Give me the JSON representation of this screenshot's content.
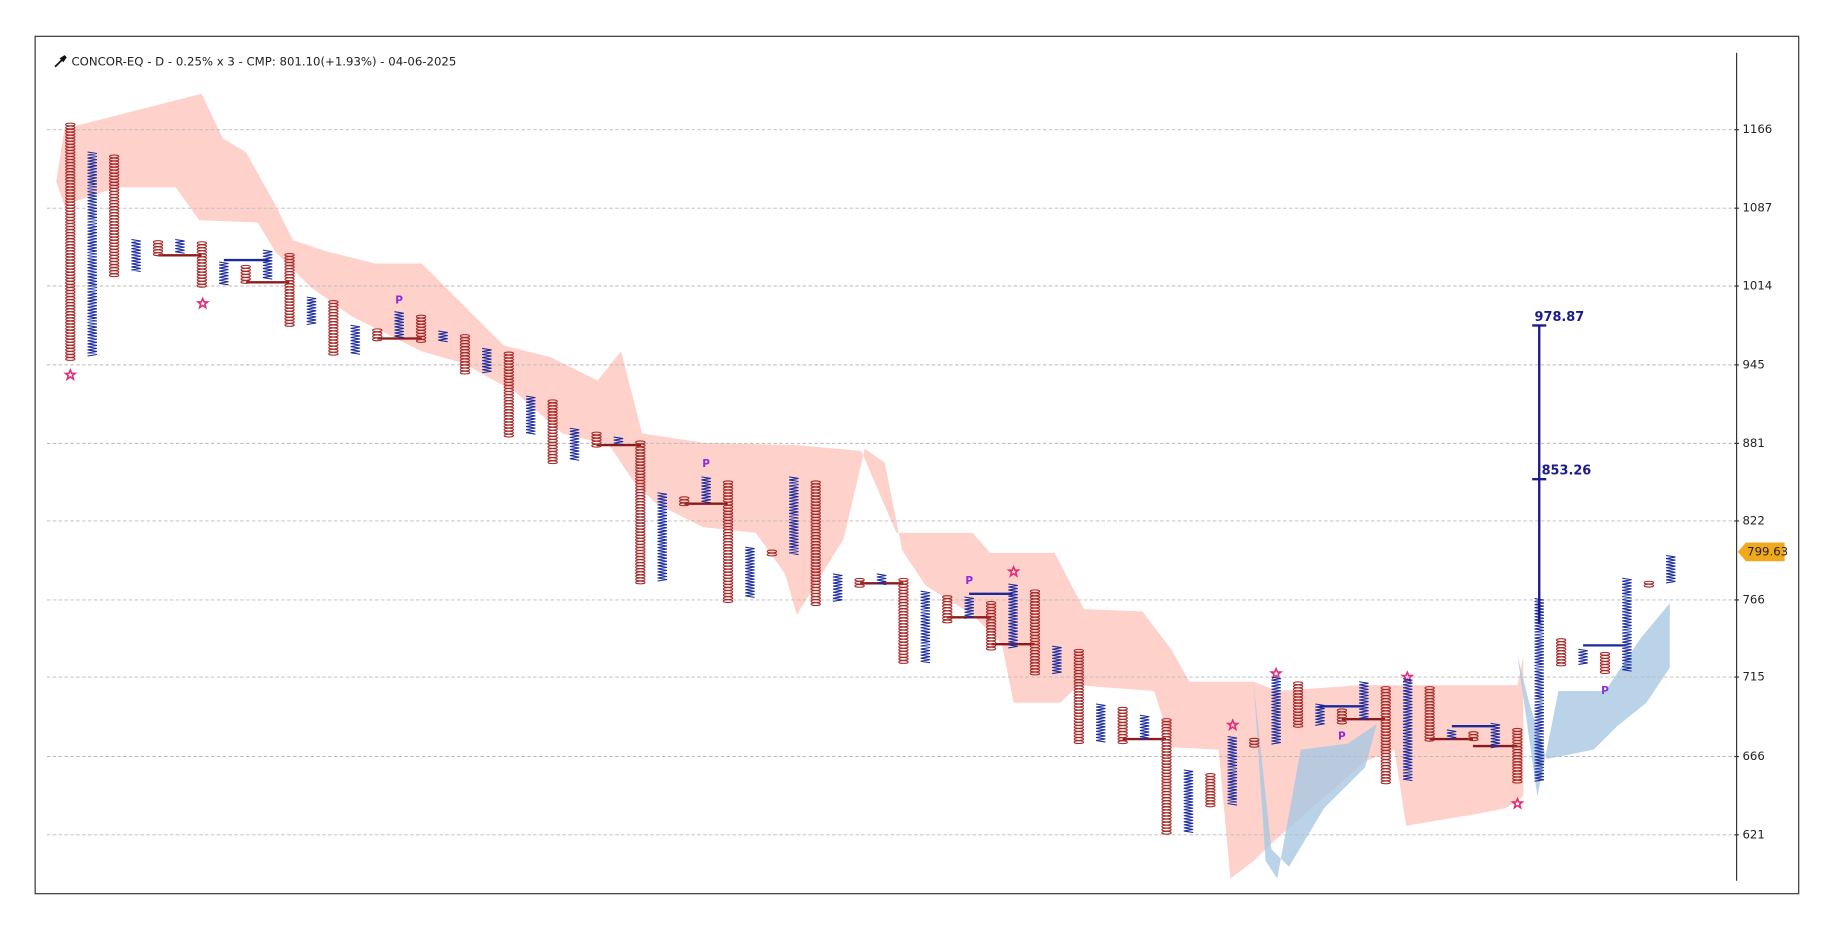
{
  "chart_data": {
    "type": "pnf",
    "title": "CONCOR-EQ - D - 0.25% x 3 - CMP: 801.10(+1.93%) - 04-06-2025",
    "log_scale": true,
    "grid": true,
    "ylim": [
      596,
      1249
    ],
    "yticks": [
      621,
      666,
      715,
      766,
      822,
      881,
      945,
      1014,
      1087,
      1166
    ],
    "x_color": "#1a2a9e",
    "o_color": "#a52a2a",
    "columns": [
      {
        "type": "O",
        "high": 1173,
        "low": 949
      },
      {
        "type": "X",
        "high": 1143,
        "low": 952
      },
      {
        "type": "O",
        "high": 1140,
        "low": 1023
      },
      {
        "type": "X",
        "high": 1057,
        "low": 1026
      },
      {
        "type": "O",
        "high": 1056,
        "low": 1041
      },
      {
        "type": "X",
        "high": 1057,
        "low": 1043
      },
      {
        "type": "O",
        "high": 1055,
        "low": 1012
      },
      {
        "type": "X",
        "high": 1036,
        "low": 1015
      },
      {
        "type": "O",
        "high": 1033,
        "low": 1016
      },
      {
        "type": "X",
        "high": 1047,
        "low": 1019
      },
      {
        "type": "O",
        "high": 1044,
        "low": 978
      },
      {
        "type": "X",
        "high": 1004,
        "low": 979
      },
      {
        "type": "O",
        "high": 1001,
        "low": 952
      },
      {
        "type": "X",
        "high": 979,
        "low": 954
      },
      {
        "type": "O",
        "high": 976,
        "low": 966
      },
      {
        "type": "X",
        "high": 991,
        "low": 968
      },
      {
        "type": "O",
        "high": 988,
        "low": 963
      },
      {
        "type": "X",
        "high": 974,
        "low": 964
      },
      {
        "type": "O",
        "high": 971,
        "low": 936
      },
      {
        "type": "X",
        "high": 959,
        "low": 938
      },
      {
        "type": "O",
        "high": 956,
        "low": 886
      },
      {
        "type": "X",
        "high": 919,
        "low": 888
      },
      {
        "type": "O",
        "high": 916,
        "low": 865
      },
      {
        "type": "X",
        "high": 893,
        "low": 867
      },
      {
        "type": "O",
        "high": 890,
        "low": 878
      },
      {
        "type": "X",
        "high": 886,
        "low": 879
      },
      {
        "type": "O",
        "high": 883,
        "low": 776
      },
      {
        "type": "X",
        "high": 843,
        "low": 778
      },
      {
        "type": "O",
        "high": 840,
        "low": 833
      },
      {
        "type": "X",
        "high": 855,
        "low": 835
      },
      {
        "type": "O",
        "high": 852,
        "low": 765
      },
      {
        "type": "X",
        "high": 803,
        "low": 767
      },
      {
        "type": "O",
        "high": 801,
        "low": 796
      },
      {
        "type": "X",
        "high": 855,
        "low": 797
      },
      {
        "type": "O",
        "high": 852,
        "low": 762
      },
      {
        "type": "X",
        "high": 784,
        "low": 764
      },
      {
        "type": "O",
        "high": 781,
        "low": 775
      },
      {
        "type": "X",
        "high": 784,
        "low": 776
      },
      {
        "type": "O",
        "high": 781,
        "low": 723
      },
      {
        "type": "X",
        "high": 772,
        "low": 724
      },
      {
        "type": "O",
        "high": 769,
        "low": 751
      },
      {
        "type": "X",
        "high": 768,
        "low": 753
      },
      {
        "type": "O",
        "high": 765,
        "low": 733
      },
      {
        "type": "X",
        "high": 777,
        "low": 733
      },
      {
        "type": "O",
        "high": 773,
        "low": 716
      },
      {
        "type": "X",
        "high": 735,
        "low": 717
      },
      {
        "type": "O",
        "high": 733,
        "low": 673
      },
      {
        "type": "X",
        "high": 698,
        "low": 674
      },
      {
        "type": "O",
        "high": 696,
        "low": 674
      },
      {
        "type": "X",
        "high": 691,
        "low": 676
      },
      {
        "type": "O",
        "high": 689,
        "low": 621
      },
      {
        "type": "X",
        "high": 658,
        "low": 622
      },
      {
        "type": "O",
        "high": 656,
        "low": 637
      },
      {
        "type": "X",
        "high": 678,
        "low": 637
      },
      {
        "type": "O",
        "high": 677,
        "low": 671
      },
      {
        "type": "X",
        "high": 715,
        "low": 673
      },
      {
        "type": "O",
        "high": 712,
        "low": 683
      },
      {
        "type": "X",
        "high": 698,
        "low": 684
      },
      {
        "type": "O",
        "high": 695,
        "low": 686
      },
      {
        "type": "X",
        "high": 712,
        "low": 688
      },
      {
        "type": "O",
        "high": 709,
        "low": 650
      },
      {
        "type": "X",
        "high": 714,
        "low": 651
      },
      {
        "type": "O",
        "high": 709,
        "low": 675
      },
      {
        "type": "X",
        "high": 682,
        "low": 676
      },
      {
        "type": "O",
        "high": 681,
        "low": 676
      },
      {
        "type": "X",
        "high": 686,
        "low": 671
      },
      {
        "type": "O",
        "high": 683,
        "low": 651
      },
      {
        "type": "X",
        "high": 767,
        "low": 651
      },
      {
        "type": "O",
        "high": 740,
        "low": 722
      },
      {
        "type": "X",
        "high": 733,
        "low": 723
      },
      {
        "type": "O",
        "high": 731,
        "low": 717
      },
      {
        "type": "X",
        "high": 781,
        "low": 718
      },
      {
        "type": "O",
        "high": 779,
        "low": 775
      },
      {
        "type": "X",
        "high": 797,
        "low": 777
      }
    ],
    "p_labels": [
      {
        "text": "P",
        "column": 15,
        "value": 1001
      },
      {
        "text": "P",
        "column": 29,
        "value": 865
      },
      {
        "text": "P",
        "column": 41,
        "value": 779
      },
      {
        "text": "P",
        "column": 58,
        "value": 678
      },
      {
        "text": "P",
        "column": 70,
        "value": 706
      }
    ],
    "target": {
      "column": 67,
      "base": 750,
      "values": [
        978.87,
        853.26
      ]
    },
    "price_tag": 799.63
  }
}
